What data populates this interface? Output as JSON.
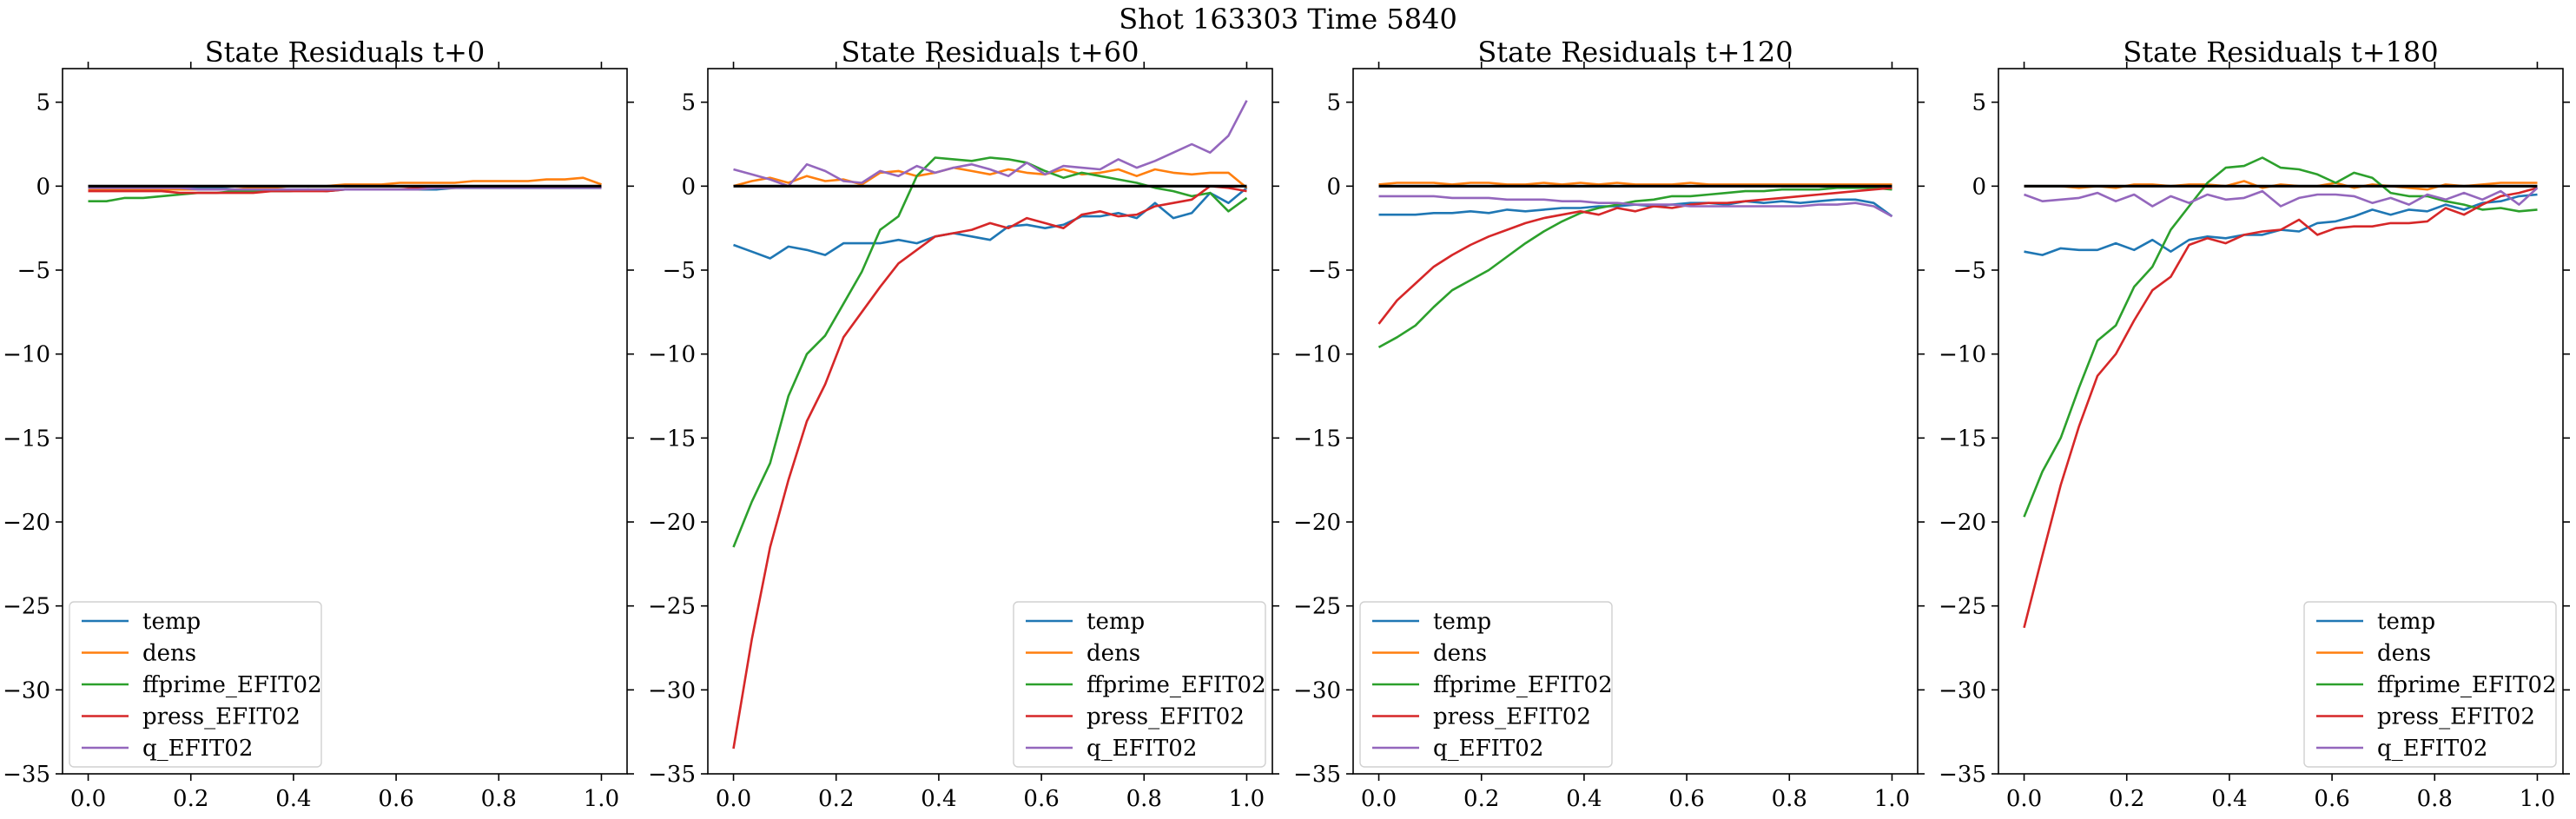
{
  "suptitle": "Shot 163303   Time 5840",
  "series_colors": {
    "temp": "#1f77b4",
    "dens": "#ff7f0e",
    "ffprime_EFIT02": "#2ca02c",
    "press_EFIT02": "#d62728",
    "q_EFIT02": "#9467bd"
  },
  "chart_data": [
    {
      "type": "line",
      "title": "State Residuals t+0",
      "xlim": [
        -0.05,
        1.05
      ],
      "ylim": [
        -35,
        7
      ],
      "xticks": [
        "0.0",
        "0.2",
        "0.4",
        "0.6",
        "0.8",
        "1.0"
      ],
      "yticks": [
        "5",
        "0",
        "−5",
        "−10",
        "−15",
        "−20",
        "−25",
        "−30",
        "−35"
      ],
      "legend_position": "lower-left",
      "reference_line": 0,
      "x": [
        0,
        0.0357,
        0.0714,
        0.1071,
        0.1429,
        0.1786,
        0.2143,
        0.25,
        0.2857,
        0.3214,
        0.3571,
        0.3929,
        0.4286,
        0.4643,
        0.5,
        0.5357,
        0.5714,
        0.6071,
        0.6429,
        0.6786,
        0.7143,
        0.75,
        0.7857,
        0.8214,
        0.8571,
        0.8929,
        0.9286,
        0.9643,
        1.0
      ],
      "series": [
        {
          "name": "temp",
          "values": [
            0,
            0,
            0,
            0,
            -0.1,
            -0.1,
            -0.1,
            -0.1,
            -0.2,
            -0.2,
            -0.2,
            -0.2,
            -0.2,
            -0.3,
            -0.2,
            -0.2,
            -0.2,
            -0.2,
            -0.2,
            -0.2,
            -0.1,
            -0.1,
            -0.1,
            -0.1,
            -0.1,
            -0.1,
            -0.1,
            -0.1,
            -0.1
          ]
        },
        {
          "name": "dens",
          "values": [
            -0.2,
            -0.2,
            -0.2,
            -0.2,
            -0.2,
            -0.2,
            -0.2,
            -0.2,
            -0.2,
            -0.1,
            -0.1,
            0,
            0,
            0,
            0.1,
            0.1,
            0.1,
            0.2,
            0.2,
            0.2,
            0.2,
            0.3,
            0.3,
            0.3,
            0.3,
            0.4,
            0.4,
            0.5,
            0.1
          ]
        },
        {
          "name": "ffprime_EFIT02",
          "values": [
            -0.9,
            -0.9,
            -0.7,
            -0.7,
            -0.6,
            -0.5,
            -0.4,
            -0.4,
            -0.3,
            -0.3,
            -0.3,
            -0.3,
            -0.2,
            -0.2,
            -0.2,
            -0.2,
            -0.2,
            -0.2,
            -0.2,
            -0.1,
            -0.1,
            -0.1,
            -0.1,
            -0.1,
            -0.1,
            -0.1,
            -0.1,
            -0.1,
            -0.1
          ]
        },
        {
          "name": "press_EFIT02",
          "values": [
            -0.3,
            -0.3,
            -0.3,
            -0.3,
            -0.3,
            -0.4,
            -0.4,
            -0.4,
            -0.4,
            -0.4,
            -0.3,
            -0.3,
            -0.3,
            -0.3,
            -0.2,
            -0.2,
            -0.2,
            -0.2,
            -0.1,
            -0.1,
            -0.1,
            0,
            0,
            0,
            0,
            0,
            0,
            0,
            -0.1
          ]
        },
        {
          "name": "q_EFIT02",
          "values": [
            -0.1,
            -0.1,
            -0.1,
            -0.1,
            -0.1,
            -0.1,
            -0.2,
            -0.2,
            -0.2,
            -0.2,
            -0.2,
            -0.2,
            -0.2,
            -0.2,
            -0.2,
            -0.2,
            -0.2,
            -0.2,
            -0.2,
            -0.1,
            -0.1,
            -0.1,
            -0.1,
            -0.1,
            -0.1,
            -0.1,
            -0.1,
            -0.1,
            -0.1
          ]
        }
      ]
    },
    {
      "type": "line",
      "title": "State Residuals t+60",
      "xlim": [
        -0.05,
        1.05
      ],
      "ylim": [
        -35,
        7
      ],
      "xticks": [
        "0.0",
        "0.2",
        "0.4",
        "0.6",
        "0.8",
        "1.0"
      ],
      "yticks": [
        "5",
        "0",
        "−5",
        "−10",
        "−15",
        "−20",
        "−25",
        "−30",
        "−35"
      ],
      "legend_position": "lower-right",
      "reference_line": 0,
      "x": [
        0,
        0.0357,
        0.0714,
        0.1071,
        0.1429,
        0.1786,
        0.2143,
        0.25,
        0.2857,
        0.3214,
        0.3571,
        0.3929,
        0.4286,
        0.4643,
        0.5,
        0.5357,
        0.5714,
        0.6071,
        0.6429,
        0.6786,
        0.7143,
        0.75,
        0.7857,
        0.8214,
        0.8571,
        0.8929,
        0.9286,
        0.9643,
        1.0
      ],
      "series": [
        {
          "name": "temp",
          "values": [
            -3.5,
            -3.9,
            -4.3,
            -3.6,
            -3.8,
            -4.1,
            -3.4,
            -3.4,
            -3.4,
            -3.2,
            -3.4,
            -3.0,
            -2.8,
            -3.0,
            -3.2,
            -2.4,
            -2.3,
            -2.5,
            -2.3,
            -1.8,
            -1.8,
            -1.6,
            -1.9,
            -1.0,
            -1.9,
            -1.6,
            -0.4,
            -1.0,
            -0.1
          ]
        },
        {
          "name": "dens",
          "values": [
            0,
            0.3,
            0.5,
            0.2,
            0.6,
            0.3,
            0.4,
            0.1,
            0.8,
            0.9,
            0.6,
            0.8,
            1.1,
            0.9,
            0.7,
            1.0,
            0.8,
            0.7,
            1.0,
            0.7,
            0.8,
            1.0,
            0.6,
            1.0,
            0.8,
            0.7,
            0.8,
            0.8,
            -0.1
          ]
        },
        {
          "name": "ffprime_EFIT02",
          "values": [
            -21.5,
            -18.8,
            -16.5,
            -12.5,
            -10.0,
            -8.9,
            -7.0,
            -5.1,
            -2.6,
            -1.8,
            0.6,
            1.7,
            1.6,
            1.5,
            1.7,
            1.6,
            1.4,
            0.9,
            0.5,
            0.8,
            0.6,
            0.4,
            0.2,
            -0.1,
            -0.3,
            -0.6,
            -0.4,
            -1.5,
            -0.7
          ]
        },
        {
          "name": "press_EFIT02",
          "values": [
            -33.5,
            -27.0,
            -21.5,
            -17.5,
            -14.0,
            -11.8,
            -9.0,
            -7.5,
            -6.0,
            -4.6,
            -3.8,
            -3.0,
            -2.8,
            -2.6,
            -2.2,
            -2.5,
            -1.9,
            -2.2,
            -2.5,
            -1.7,
            -1.5,
            -1.8,
            -1.7,
            -1.2,
            -1.0,
            -0.8,
            0,
            -0.1,
            -0.3
          ]
        },
        {
          "name": "q_EFIT02",
          "values": [
            1.0,
            0.7,
            0.4,
            0,
            1.3,
            0.9,
            0.3,
            0.2,
            0.9,
            0.6,
            1.2,
            0.8,
            1.1,
            1.3,
            1.0,
            0.6,
            1.4,
            0.7,
            1.2,
            1.1,
            1.0,
            1.6,
            1.1,
            1.5,
            2.0,
            2.5,
            2.0,
            3.0,
            5.1
          ]
        }
      ]
    },
    {
      "type": "line",
      "title": "State Residuals t+120",
      "xlim": [
        -0.05,
        1.05
      ],
      "ylim": [
        -35,
        7
      ],
      "xticks": [
        "0.0",
        "0.2",
        "0.4",
        "0.6",
        "0.8",
        "1.0"
      ],
      "yticks": [
        "5",
        "0",
        "−5",
        "−10",
        "−15",
        "−20",
        "−25",
        "−30",
        "−35"
      ],
      "legend_position": "lower-left",
      "reference_line": 0,
      "x": [
        0,
        0.0357,
        0.0714,
        0.1071,
        0.1429,
        0.1786,
        0.2143,
        0.25,
        0.2857,
        0.3214,
        0.3571,
        0.3929,
        0.4286,
        0.4643,
        0.5,
        0.5357,
        0.5714,
        0.6071,
        0.6429,
        0.6786,
        0.7143,
        0.75,
        0.7857,
        0.8214,
        0.8571,
        0.8929,
        0.9286,
        0.9643,
        1.0
      ],
      "series": [
        {
          "name": "temp",
          "values": [
            -1.7,
            -1.7,
            -1.7,
            -1.6,
            -1.6,
            -1.5,
            -1.6,
            -1.4,
            -1.5,
            -1.4,
            -1.3,
            -1.3,
            -1.2,
            -1.2,
            -1.1,
            -1.2,
            -1.1,
            -1.0,
            -1.0,
            -1.1,
            -0.9,
            -1.0,
            -0.9,
            -1.0,
            -0.9,
            -0.8,
            -0.8,
            -1.0,
            -1.8
          ]
        },
        {
          "name": "dens",
          "values": [
            0.1,
            0.2,
            0.2,
            0.2,
            0.1,
            0.2,
            0.2,
            0.1,
            0.1,
            0.2,
            0.1,
            0.2,
            0.1,
            0.2,
            0.1,
            0.1,
            0.1,
            0.2,
            0.1,
            0.1,
            0.1,
            0.1,
            0.1,
            0.1,
            0.1,
            0.1,
            0.1,
            0.1,
            0.1
          ]
        },
        {
          "name": "ffprime_EFIT02",
          "values": [
            -9.6,
            -9.0,
            -8.3,
            -7.2,
            -6.2,
            -5.6,
            -5.0,
            -4.2,
            -3.4,
            -2.7,
            -2.1,
            -1.6,
            -1.3,
            -1.1,
            -0.9,
            -0.8,
            -0.6,
            -0.6,
            -0.5,
            -0.4,
            -0.3,
            -0.3,
            -0.2,
            -0.2,
            -0.2,
            -0.1,
            -0.1,
            -0.1,
            -0.2
          ]
        },
        {
          "name": "press_EFIT02",
          "values": [
            -8.2,
            -6.8,
            -5.8,
            -4.8,
            -4.1,
            -3.5,
            -3.0,
            -2.6,
            -2.2,
            -1.9,
            -1.7,
            -1.5,
            -1.7,
            -1.3,
            -1.5,
            -1.2,
            -1.3,
            -1.1,
            -1.0,
            -1.0,
            -0.9,
            -0.8,
            -0.7,
            -0.6,
            -0.5,
            -0.4,
            -0.3,
            -0.2,
            -0.1
          ]
        },
        {
          "name": "q_EFIT02",
          "values": [
            -0.6,
            -0.6,
            -0.6,
            -0.6,
            -0.7,
            -0.7,
            -0.7,
            -0.8,
            -0.8,
            -0.8,
            -0.9,
            -0.9,
            -1.0,
            -1.0,
            -1.1,
            -1.1,
            -1.1,
            -1.2,
            -1.2,
            -1.2,
            -1.2,
            -1.2,
            -1.2,
            -1.2,
            -1.1,
            -1.1,
            -1.0,
            -1.2,
            -1.8
          ]
        }
      ]
    },
    {
      "type": "line",
      "title": "State Residuals t+180",
      "xlim": [
        -0.05,
        1.05
      ],
      "ylim": [
        -35,
        7
      ],
      "xticks": [
        "0.0",
        "0.2",
        "0.4",
        "0.6",
        "0.8",
        "1.0"
      ],
      "yticks": [
        "5",
        "0",
        "−5",
        "−10",
        "−15",
        "−20",
        "−25",
        "−30",
        "−35"
      ],
      "legend_position": "lower-right",
      "reference_line": 0,
      "x": [
        0,
        0.0357,
        0.0714,
        0.1071,
        0.1429,
        0.1786,
        0.2143,
        0.25,
        0.2857,
        0.3214,
        0.3571,
        0.3929,
        0.4286,
        0.4643,
        0.5,
        0.5357,
        0.5714,
        0.6071,
        0.6429,
        0.6786,
        0.7143,
        0.75,
        0.7857,
        0.8214,
        0.8571,
        0.8929,
        0.9286,
        0.9643,
        1.0
      ],
      "series": [
        {
          "name": "temp",
          "values": [
            -3.9,
            -4.1,
            -3.7,
            -3.8,
            -3.8,
            -3.4,
            -3.8,
            -3.2,
            -3.9,
            -3.2,
            -3.0,
            -3.1,
            -2.9,
            -2.9,
            -2.6,
            -2.7,
            -2.2,
            -2.1,
            -1.8,
            -1.4,
            -1.7,
            -1.4,
            -1.5,
            -1.1,
            -1.4,
            -1.0,
            -0.9,
            -0.6,
            -0.5
          ]
        },
        {
          "name": "dens",
          "values": [
            0,
            0,
            0,
            -0.1,
            0,
            -0.1,
            0.1,
            0.1,
            0,
            0.1,
            0.1,
            0,
            0.3,
            -0.1,
            0.1,
            0,
            0,
            0.2,
            -0.1,
            0.1,
            0,
            -0.1,
            -0.2,
            0.1,
            0,
            0.1,
            0.2,
            0.2,
            0.2
          ]
        },
        {
          "name": "ffprime_EFIT02",
          "values": [
            -19.7,
            -17.0,
            -15.0,
            -12.0,
            -9.2,
            -8.3,
            -6.0,
            -4.8,
            -2.6,
            -1.2,
            0.2,
            1.1,
            1.2,
            1.7,
            1.1,
            1.0,
            0.7,
            0.2,
            0.8,
            0.5,
            -0.4,
            -0.6,
            -0.6,
            -0.9,
            -1.1,
            -1.4,
            -1.3,
            -1.5,
            -1.4
          ]
        },
        {
          "name": "press_EFIT02",
          "values": [
            -26.3,
            -22.0,
            -17.8,
            -14.3,
            -11.3,
            -10.0,
            -8.0,
            -6.2,
            -5.4,
            -3.5,
            -3.1,
            -3.4,
            -2.9,
            -2.7,
            -2.6,
            -2.0,
            -2.9,
            -2.5,
            -2.4,
            -2.4,
            -2.2,
            -2.2,
            -2.1,
            -1.3,
            -1.7,
            -1.1,
            -0.6,
            -0.4,
            -0.1
          ]
        },
        {
          "name": "q_EFIT02",
          "values": [
            -0.5,
            -0.9,
            -0.8,
            -0.7,
            -0.4,
            -0.9,
            -0.5,
            -1.2,
            -0.6,
            -1.0,
            -0.5,
            -0.8,
            -0.7,
            -0.3,
            -1.2,
            -0.7,
            -0.5,
            -0.5,
            -0.6,
            -1.0,
            -0.7,
            -1.1,
            -0.5,
            -0.8,
            -0.4,
            -0.8,
            -0.3,
            -1.1,
            -0.1
          ]
        }
      ]
    }
  ]
}
